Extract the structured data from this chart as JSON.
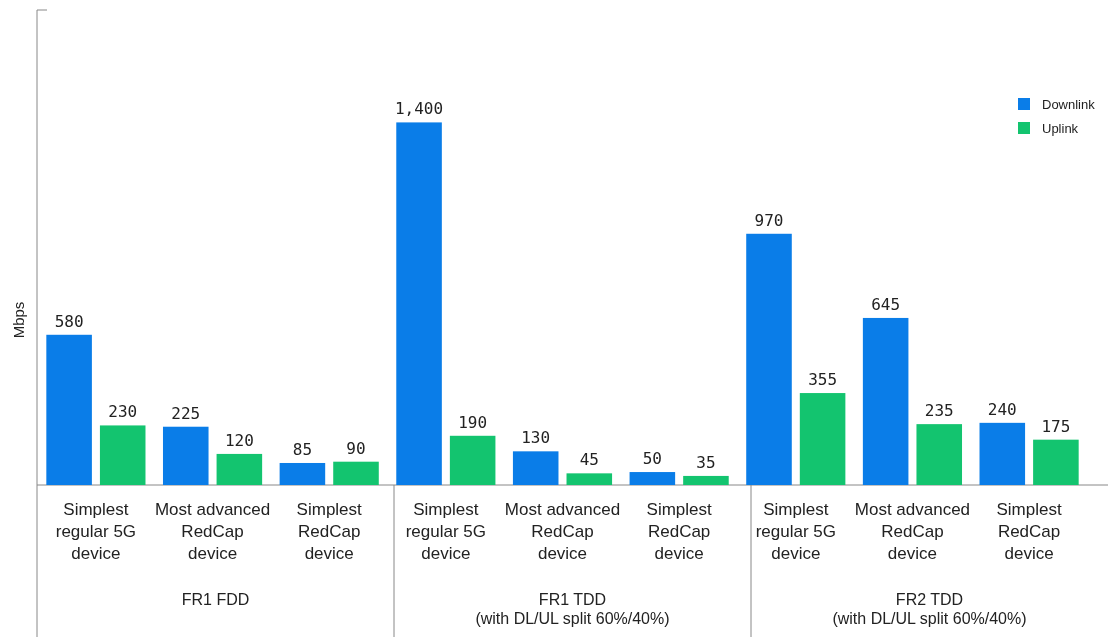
{
  "chart_data": {
    "type": "bar",
    "ylabel": "Mbps",
    "categories": [
      "Simplest\nregular 5G\ndevice",
      "Most advanced\nRedCap\ndevice",
      "Simplest\nRedCap\ndevice",
      "Simplest\nregular 5G\ndevice",
      "Most advanced\nRedCap\ndevice",
      "Simplest\nRedCap\ndevice",
      "Simplest\nregular 5G\ndevice",
      "Most advanced\nRedCap\ndevice",
      "Simplest\nRedCap\ndevice"
    ],
    "series": [
      {
        "name": "Downlink",
        "color": "#0a7de8",
        "values": [
          580,
          225,
          85,
          1400,
          130,
          50,
          970,
          645,
          240
        ],
        "value_labels": [
          "580",
          "225",
          "85",
          "1,400",
          "130",
          "50",
          "970",
          "645",
          "240"
        ]
      },
      {
        "name": "Uplink",
        "color": "#13c46f",
        "values": [
          230,
          120,
          90,
          190,
          45,
          35,
          355,
          235,
          175
        ],
        "value_labels": [
          "230",
          "120",
          "90",
          "190",
          "45",
          "35",
          "355",
          "235",
          "175"
        ]
      }
    ],
    "annotations": [
      "FR1 FDD",
      "FR1 TDD\n(with DL/UL split 60%/40%)",
      "FR2 TDD\n(with DL/UL split 60%/40%)"
    ],
    "legend": "top right"
  }
}
